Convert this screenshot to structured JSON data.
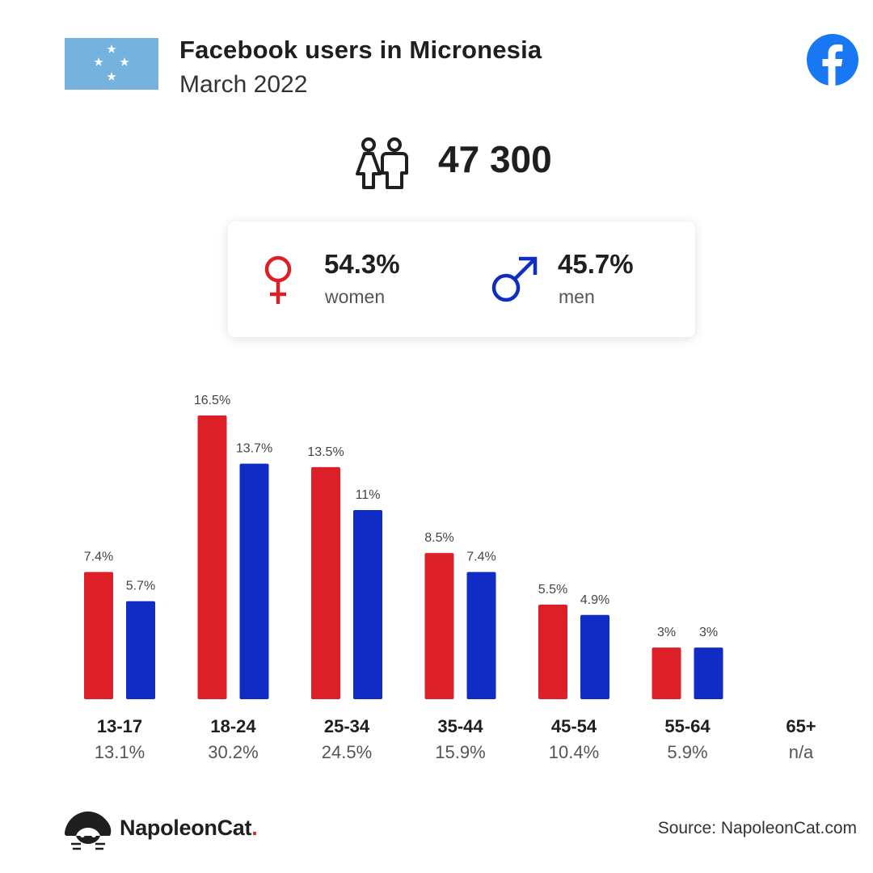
{
  "header": {
    "title": "Facebook users in Micronesia",
    "subtitle": "March 2022"
  },
  "summary": {
    "total_users": "47 300",
    "women_pct": "54.3%",
    "women_label": "women",
    "men_pct": "45.7%",
    "men_label": "men"
  },
  "colors": {
    "women": "#dd1f28",
    "men": "#0f2cc4",
    "facebook": "#1877f2",
    "flag": "#75b2dd"
  },
  "icons": [
    "micronesia-flag-icon",
    "facebook-logo-icon",
    "users-icon",
    "female-symbol-icon",
    "male-symbol-icon",
    "napoleoncat-logo-icon"
  ],
  "chart_data": {
    "type": "bar",
    "categories": [
      "13-17",
      "18-24",
      "25-34",
      "35-44",
      "45-54",
      "55-64",
      "65+"
    ],
    "category_totals": [
      "13.1%",
      "30.2%",
      "24.5%",
      "15.9%",
      "10.4%",
      "5.9%",
      "n/a"
    ],
    "series": [
      {
        "name": "women",
        "values": [
          7.4,
          16.5,
          13.5,
          8.5,
          5.5,
          3,
          null
        ],
        "labels": [
          "7.4%",
          "16.5%",
          "13.5%",
          "8.5%",
          "5.5%",
          "3%",
          ""
        ]
      },
      {
        "name": "men",
        "values": [
          5.7,
          13.7,
          11,
          7.4,
          4.9,
          3,
          null
        ],
        "labels": [
          "5.7%",
          "13.7%",
          "11%",
          "7.4%",
          "4.9%",
          "3%",
          ""
        ]
      }
    ],
    "ylim": [
      0,
      16.5
    ],
    "grid": false
  },
  "footer": {
    "brand_name": "NapoleonCat",
    "brand_dot": ".",
    "source": "Source: NapoleonCat.com"
  }
}
